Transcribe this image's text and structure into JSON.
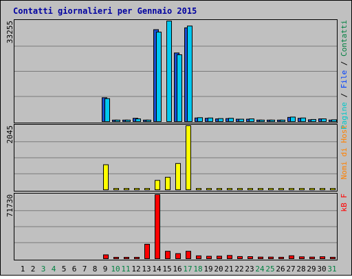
{
  "chart_data": {
    "type": "bar",
    "title": "Contatti giornalieri per Gennaio 2015",
    "categories": [
      "1",
      "2",
      "3",
      "4",
      "5",
      "6",
      "7",
      "8",
      "9",
      "10",
      "11",
      "12",
      "13",
      "14",
      "15",
      "16",
      "17",
      "18",
      "19",
      "20",
      "21",
      "22",
      "23",
      "24",
      "25",
      "26",
      "27",
      "28",
      "29",
      "30",
      "31"
    ],
    "weekend_days": [
      "3",
      "4",
      "10",
      "11",
      "17",
      "18",
      "24",
      "25",
      "31"
    ],
    "grid": true,
    "panels": [
      {
        "name": "pagine-file-contatti",
        "max_label": "33255",
        "ylim": [
          0,
          33255
        ],
        "legend": [
          {
            "text": "Pagine",
            "color": "#00c8c8"
          },
          {
            "text": "File",
            "color": "#0040ff"
          },
          {
            "text": "Contatti",
            "color": "#008040"
          }
        ],
        "series": [
          {
            "name": "File",
            "color": "#1a4fd0",
            "values": [
              0,
              0,
              0,
              0,
              0,
              0,
              0,
              0,
              7900,
              500,
              500,
              1100,
              500,
              30400,
              0,
              22700,
              31000,
              1200,
              1100,
              900,
              1000,
              800,
              800,
              500,
              500,
              500,
              1400,
              1100,
              600,
              900,
              500
            ]
          },
          {
            "name": "Contatti",
            "color": "#00c8f0",
            "values": [
              0,
              0,
              0,
              0,
              0,
              0,
              0,
              0,
              7600,
              500,
              500,
              900,
              500,
              29600,
              33255,
              22100,
              31600,
              1300,
              1200,
              1000,
              1100,
              800,
              900,
              500,
              500,
              500,
              1500,
              1200,
              700,
              900,
              600
            ]
          }
        ]
      },
      {
        "name": "nomi-di-host",
        "max_label": "2045",
        "ylim": [
          0,
          2045
        ],
        "legend": [
          {
            "text": "Nomi di Host",
            "color": "#ff8000"
          }
        ],
        "series": [
          {
            "name": "Nomi di Host",
            "color": "#ffff00",
            "values": [
              0,
              0,
              0,
              0,
              0,
              0,
              0,
              0,
              800,
              20,
              20,
              20,
              20,
              300,
              400,
              840,
              2045,
              20,
              20,
              20,
              20,
              20,
              20,
              20,
              20,
              20,
              40,
              20,
              20,
              20,
              20
            ]
          }
        ]
      },
      {
        "name": "kb-f",
        "max_label": "71730",
        "ylim": [
          0,
          71730
        ],
        "legend": [
          {
            "text": "kB F",
            "color": "#ff0000"
          }
        ],
        "series": [
          {
            "name": "kB F",
            "color": "#ff0000",
            "values": [
              0,
              0,
              0,
              0,
              0,
              0,
              0,
              0,
              4300,
              1000,
              1000,
              1300,
              16200,
              71730,
              8300,
              5700,
              8300,
              3200,
              2700,
              2800,
              3600,
              2400,
              2300,
              1800,
              1800,
              1600,
              3300,
              2100,
              1800,
              2200,
              1600
            ]
          }
        ]
      }
    ]
  }
}
